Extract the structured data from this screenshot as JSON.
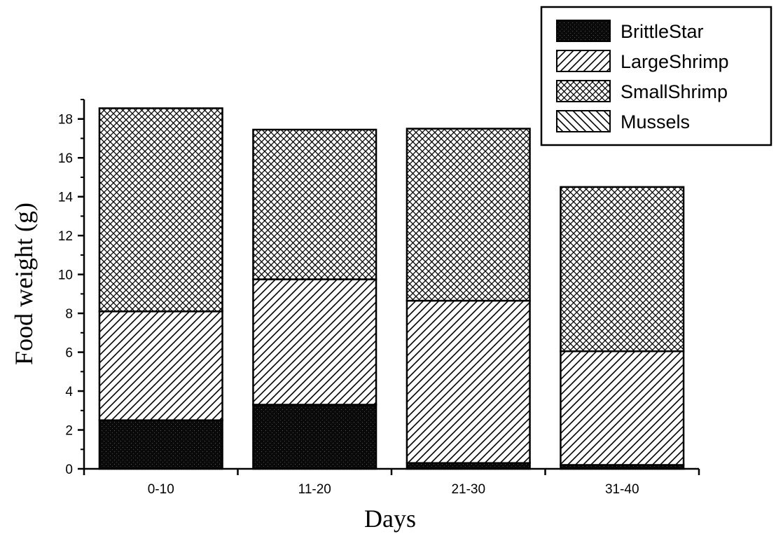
{
  "chart_data": {
    "type": "bar",
    "stacked": true,
    "title": "",
    "xlabel": "Days",
    "ylabel": "Food weight (g)",
    "ylim": [
      0,
      19
    ],
    "yticks": [
      0,
      2,
      4,
      6,
      8,
      10,
      12,
      14,
      16,
      18
    ],
    "categories": [
      "0-10",
      "11-20",
      "21-30",
      "31-40"
    ],
    "series": [
      {
        "name": "BrittleStar",
        "pattern": "solid-black",
        "values": [
          2.5,
          3.3,
          0.3,
          0.2
        ]
      },
      {
        "name": "LargeShrimp",
        "pattern": "diagonal-right",
        "values": [
          5.6,
          6.45,
          8.35,
          5.85
        ]
      },
      {
        "name": "SmallShrimp",
        "pattern": "crosshatch",
        "values": [
          10.45,
          7.7,
          8.85,
          8.45
        ]
      },
      {
        "name": "Mussels",
        "pattern": "diagonal-left",
        "values": [
          0,
          0,
          0,
          0
        ]
      }
    ],
    "legend_position": "top-right",
    "grid": false
  }
}
